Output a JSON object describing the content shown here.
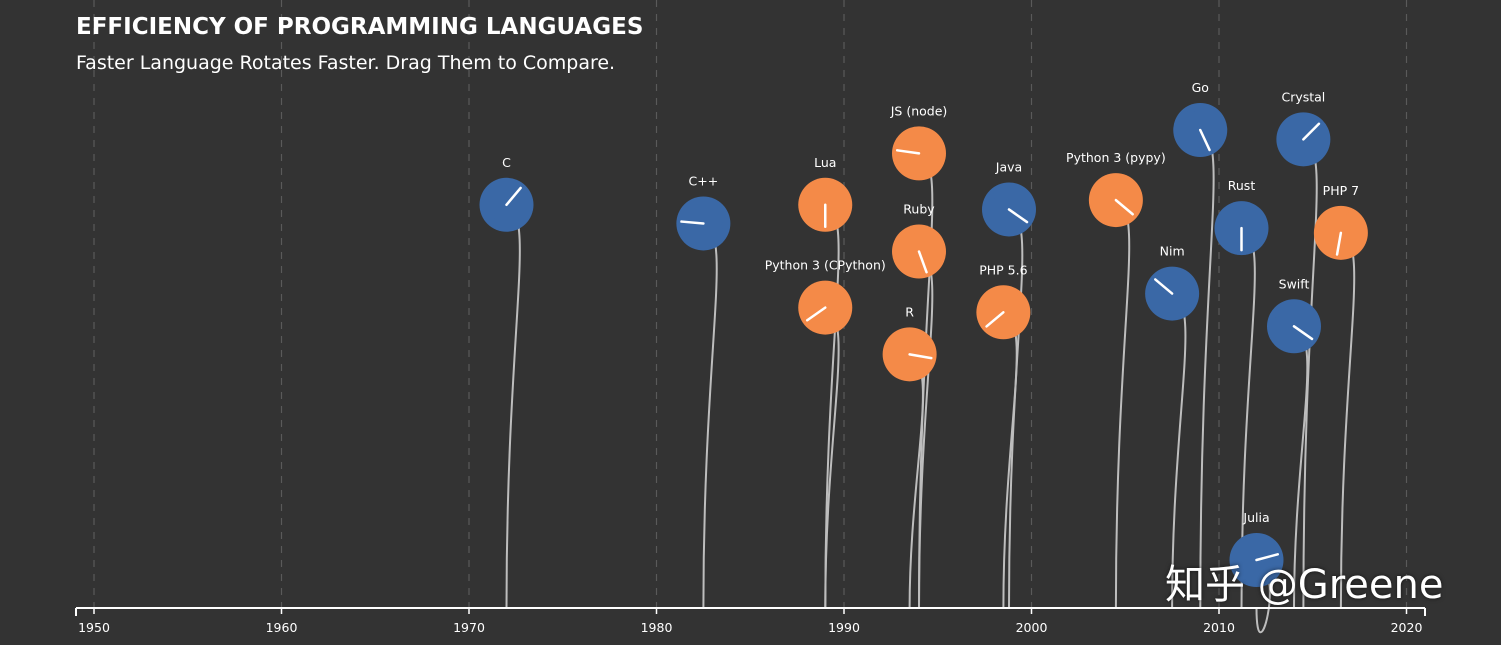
{
  "header": {
    "title": "EFFICIENCY OF PROGRAMMING LANGUAGES",
    "subtitle": "Faster Language Rotates Faster. Drag Them to Compare."
  },
  "watermark": "知乎 @Greene",
  "colors": {
    "background": "#333333",
    "blue": "#3a68a6",
    "orange": "#f48a48",
    "stem": "#bdbdbd",
    "grid": "#5a5a5a",
    "axis": "#ffffff",
    "text": "#ffffff"
  },
  "chart_data": {
    "type": "scatter",
    "xlim": [
      1949,
      2021
    ],
    "xticks": [
      1950,
      1960,
      1970,
      1980,
      1990,
      2000,
      2010,
      2020
    ],
    "grid": "vertical dashed",
    "series": [
      {
        "name": "C",
        "x": 1972,
        "y": 0.87,
        "color": "blue",
        "angle": -50
      },
      {
        "name": "C++",
        "x": 1982.5,
        "y": 0.83,
        "color": "blue",
        "angle": -175
      },
      {
        "name": "Python 3 (CPython)",
        "x": 1989,
        "y": 0.65,
        "color": "orange",
        "angle": 145
      },
      {
        "name": "Lua",
        "x": 1989,
        "y": 0.87,
        "color": "orange",
        "angle": 90
      },
      {
        "name": "JS (node)",
        "x": 1994,
        "y": 0.98,
        "color": "orange",
        "angle": -172
      },
      {
        "name": "Ruby",
        "x": 1994,
        "y": 0.77,
        "color": "orange",
        "angle": 70
      },
      {
        "name": "R",
        "x": 1993.5,
        "y": 0.55,
        "color": "orange",
        "angle": 10
      },
      {
        "name": "PHP 5.6",
        "x": 1998.5,
        "y": 0.64,
        "color": "orange",
        "angle": 140
      },
      {
        "name": "Java",
        "x": 1998.8,
        "y": 0.86,
        "color": "blue",
        "angle": 35
      },
      {
        "name": "Python 3 (pypy)",
        "x": 2004.5,
        "y": 0.88,
        "color": "orange",
        "angle": 40
      },
      {
        "name": "Nim",
        "x": 2007.5,
        "y": 0.68,
        "color": "blue",
        "angle": -140
      },
      {
        "name": "Go",
        "x": 2009,
        "y": 1.03,
        "color": "blue",
        "angle": 65
      },
      {
        "name": "Rust",
        "x": 2011.2,
        "y": 0.82,
        "color": "blue",
        "angle": 90
      },
      {
        "name": "Julia",
        "x": 2012,
        "y": 0.11,
        "color": "blue",
        "angle": -15
      },
      {
        "name": "Crystal",
        "x": 2014.5,
        "y": 1.01,
        "color": "blue",
        "angle": -45
      },
      {
        "name": "Swift",
        "x": 2014,
        "y": 0.61,
        "color": "blue",
        "angle": 35
      },
      {
        "name": "PHP 7",
        "x": 2016.5,
        "y": 0.81,
        "color": "orange",
        "angle": 100
      }
    ]
  }
}
